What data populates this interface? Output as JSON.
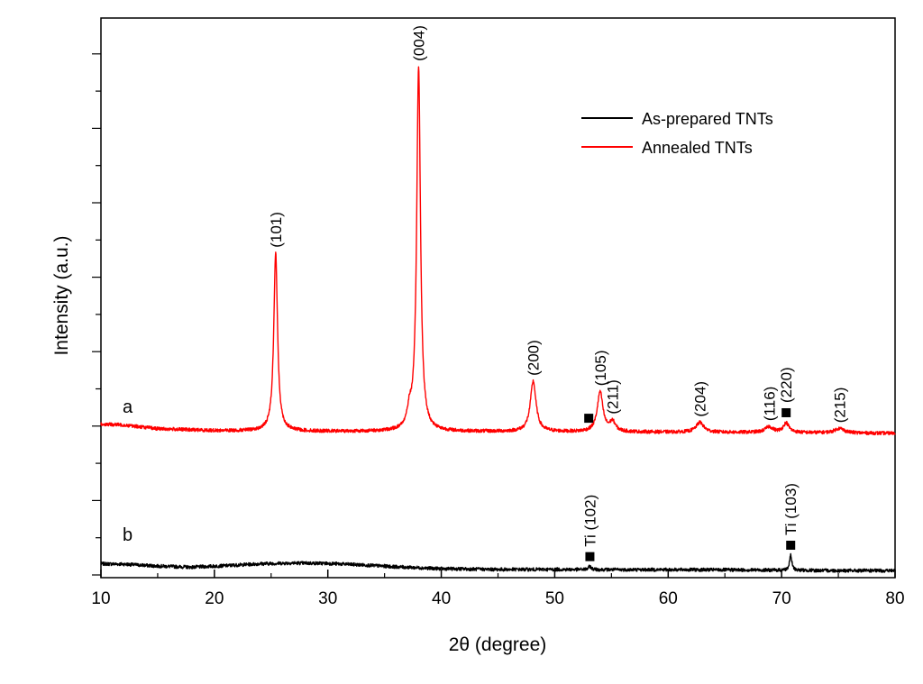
{
  "chart_data": {
    "type": "line",
    "title": "",
    "xlabel": "2θ (degree)",
    "ylabel": "Intensity (a.u.)",
    "xlim": [
      10,
      80
    ],
    "xticks": [
      10,
      20,
      30,
      40,
      50,
      60,
      70,
      80
    ],
    "y_tick_labels": "none",
    "grid": false,
    "legend_placement": "top-right",
    "series": [
      {
        "name": "As-prepared TNTs",
        "label": "b",
        "color": "#000000",
        "baseline": [
          [
            10,
            0.2
          ],
          [
            12,
            0.19
          ],
          [
            15,
            0.14
          ],
          [
            18,
            0.11
          ],
          [
            21,
            0.15
          ],
          [
            24,
            0.2
          ],
          [
            27,
            0.22
          ],
          [
            30,
            0.21
          ],
          [
            33,
            0.17
          ],
          [
            36,
            0.12
          ],
          [
            40,
            0.07
          ],
          [
            45,
            0.05
          ],
          [
            50,
            0.05
          ],
          [
            55,
            0.045
          ],
          [
            60,
            0.045
          ],
          [
            65,
            0.04
          ],
          [
            70,
            0.03
          ],
          [
            75,
            0.02
          ],
          [
            80,
            0.02
          ]
        ],
        "peaks": [
          {
            "x": 53.1,
            "height": 0.08,
            "width": 0.15
          },
          {
            "x": 70.8,
            "height": 0.4,
            "width": 0.12
          }
        ]
      },
      {
        "name": "Annealed TNTs",
        "label": "a",
        "color": "#ff0000",
        "baseline": [
          [
            10,
            0.22
          ],
          [
            12,
            0.2
          ],
          [
            15,
            0.1
          ],
          [
            20,
            0.05
          ],
          [
            25,
            0.04
          ],
          [
            30,
            0.03
          ],
          [
            35,
            0.03
          ],
          [
            40,
            0.03
          ],
          [
            50,
            0.02
          ],
          [
            60,
            0.01
          ],
          [
            70,
            0.0
          ],
          [
            80,
            -0.02
          ]
        ],
        "peaks": [
          {
            "x": 25.4,
            "height": 4.7,
            "width": 0.2
          },
          {
            "x": 37.2,
            "height": 0.42,
            "width": 0.25
          },
          {
            "x": 38.0,
            "height": 9.6,
            "width": 0.2
          },
          {
            "x": 48.1,
            "height": 1.33,
            "width": 0.3
          },
          {
            "x": 54.0,
            "height": 1.05,
            "width": 0.3
          },
          {
            "x": 55.1,
            "height": 0.25,
            "width": 0.3
          },
          {
            "x": 62.8,
            "height": 0.26,
            "width": 0.4
          },
          {
            "x": 68.9,
            "height": 0.15,
            "width": 0.4
          },
          {
            "x": 70.4,
            "height": 0.25,
            "width": 0.3
          },
          {
            "x": 75.1,
            "height": 0.12,
            "width": 0.5
          }
        ]
      }
    ],
    "annotations": [
      {
        "text": "(101)",
        "x": 25.4,
        "series": "Annealed TNTs",
        "marker": false
      },
      {
        "text": "(004)",
        "x": 38.0,
        "series": "Annealed TNTs",
        "marker": false
      },
      {
        "text": "(200)",
        "x": 48.1,
        "series": "Annealed TNTs",
        "marker": false
      },
      {
        "text": "(105)",
        "x": 54.0,
        "series": "Annealed TNTs",
        "marker": false
      },
      {
        "text": "(211)",
        "x": 55.1,
        "series": "Annealed TNTs",
        "marker": false
      },
      {
        "text": "(204)",
        "x": 62.8,
        "series": "Annealed TNTs",
        "marker": false
      },
      {
        "text": "(116)",
        "x": 68.9,
        "series": "Annealed TNTs",
        "marker": false
      },
      {
        "text": "(220)",
        "x": 70.4,
        "series": "Annealed TNTs",
        "marker": true
      },
      {
        "text": "(215)",
        "x": 75.1,
        "series": "Annealed TNTs",
        "marker": false
      },
      {
        "text": "Ti (102)",
        "x": 53.1,
        "series": "As-prepared TNTs",
        "marker": true
      },
      {
        "text": "Ti (103)",
        "x": 70.8,
        "series": "As-prepared TNTs",
        "marker": true
      }
    ],
    "extra_markers": [
      {
        "x": 53.0,
        "series": "Annealed TNTs"
      }
    ]
  }
}
